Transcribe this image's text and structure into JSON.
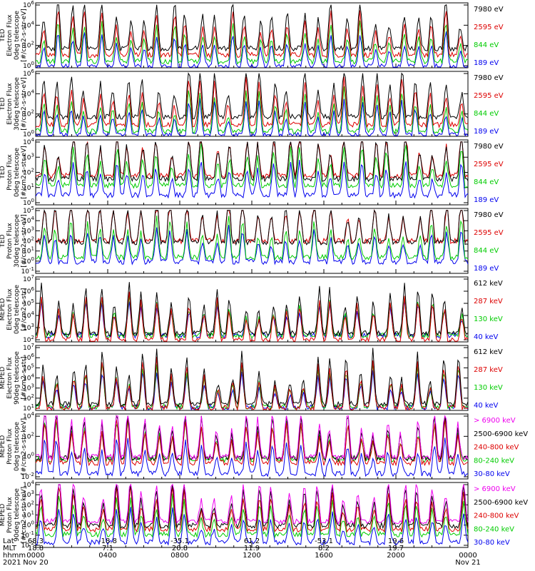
{
  "chart_data": {
    "type": "line",
    "panels": [
      {
        "instrument": "TED",
        "ylabel": [
          "TED",
          "Electron Flux",
          "0deg telescope",
          "[#/cm2-s-str-eV]"
        ],
        "yticks": [
          "10^6",
          "10^4",
          "10^2",
          "10^0"
        ],
        "ylim_exp": [
          0,
          6
        ],
        "series": [
          {
            "name": "7980 eV",
            "color": "#000000"
          },
          {
            "name": "2595 eV",
            "color": "#dd0000"
          },
          {
            "name": "844 eV",
            "color": "#00cc00"
          },
          {
            "name": "189 eV",
            "color": "#0000ee"
          }
        ]
      },
      {
        "instrument": "TED",
        "ylabel": [
          "TED",
          "Electron Flux",
          "30deg telescope",
          "[#/cm2-s-str-eV]"
        ],
        "yticks": [
          "10^6",
          "10^4",
          "10^2",
          "10^0"
        ],
        "ylim_exp": [
          0,
          6
        ],
        "series": [
          {
            "name": "7980 eV",
            "color": "#000000"
          },
          {
            "name": "2595 eV",
            "color": "#dd0000"
          },
          {
            "name": "844 eV",
            "color": "#00cc00"
          },
          {
            "name": "189 eV",
            "color": "#0000ee"
          }
        ]
      },
      {
        "instrument": "TED",
        "ylabel": [
          "TED",
          "Proton Flux",
          "0deg telescope",
          "[#/cm2-s-str-eV]"
        ],
        "yticks": [
          "10^4",
          "10^3",
          "10^2",
          "10^1",
          "10^0"
        ],
        "ylim_exp": [
          0,
          4.5
        ],
        "series": [
          {
            "name": "7980 eV",
            "color": "#000000"
          },
          {
            "name": "2595 eV",
            "color": "#dd0000"
          },
          {
            "name": "844 eV",
            "color": "#00cc00"
          },
          {
            "name": "189 eV",
            "color": "#0000ee"
          }
        ]
      },
      {
        "instrument": "TED",
        "ylabel": [
          "TED",
          "Proton Flux",
          "30deg telescope",
          "[#/cm2-s-str-eV]"
        ],
        "yticks": [
          "10^5",
          "10^4",
          "10^3",
          "10^2",
          "10^1",
          "10^0",
          "10^-1"
        ],
        "ylim_exp": [
          -1,
          5
        ],
        "series": [
          {
            "name": "7980 eV",
            "color": "#000000"
          },
          {
            "name": "2595 eV",
            "color": "#dd0000"
          },
          {
            "name": "844 eV",
            "color": "#00cc00"
          },
          {
            "name": "189 eV",
            "color": "#0000ee"
          }
        ]
      },
      {
        "instrument": "MEPED",
        "ylabel": [
          "MEPED",
          "Electron Flux",
          "0deg telescope",
          "[#/cm2-s-str]"
        ],
        "yticks": [
          "10^7",
          "10^6",
          "10^5",
          "10^4",
          "10^3",
          "10^2"
        ],
        "ylim_exp": [
          1.5,
          7
        ],
        "series": [
          {
            "name": "612 keV",
            "color": "#000000"
          },
          {
            "name": "287 keV",
            "color": "#dd0000"
          },
          {
            "name": "130 keV",
            "color": "#00cc00"
          },
          {
            "name": "40 keV",
            "color": "#0000ee"
          }
        ]
      },
      {
        "instrument": "MEPED",
        "ylabel": [
          "MEPED",
          "Electron Flux",
          "90deg telescope",
          "[#/cm2-s-str]"
        ],
        "yticks": [
          "10^7",
          "10^6",
          "10^5",
          "10^4",
          "10^3",
          "10^2",
          "10^1"
        ],
        "ylim_exp": [
          1,
          7
        ],
        "series": [
          {
            "name": "612 keV",
            "color": "#000000"
          },
          {
            "name": "287 keV",
            "color": "#dd0000"
          },
          {
            "name": "130 keV",
            "color": "#00cc00"
          },
          {
            "name": "40 keV",
            "color": "#0000ee"
          }
        ]
      },
      {
        "instrument": "MEPED",
        "ylabel": [
          "MEPED",
          "Proton Flux",
          "0deg telescope",
          "[#/cm2-s-str-keV]"
        ],
        "yticks": [
          "10^4",
          "10^2",
          "10^0",
          "10^-2"
        ],
        "ylim_exp": [
          -2.5,
          5
        ],
        "series": [
          {
            "name": "> 6900 keV",
            "color": "#ee00ee"
          },
          {
            "name": "2500-6900 keV",
            "color": "#000000"
          },
          {
            "name": "240-800 keV",
            "color": "#dd0000"
          },
          {
            "name": "80-240 keV",
            "color": "#00cc00"
          },
          {
            "name": "30-80 keV",
            "color": "#0000ee"
          }
        ]
      },
      {
        "instrument": "MEPED",
        "ylabel": [
          "MEPED",
          "Proton Flux",
          "90deg telescope",
          "[#/cm2-s-str-keV]"
        ],
        "yticks": [
          "10^4",
          "10^3",
          "10^2",
          "10^1",
          "10^0",
          "10^-1",
          "10^-2"
        ],
        "ylim_exp": [
          -2.5,
          4.5
        ],
        "series": [
          {
            "name": "> 6900 keV",
            "color": "#ee00ee"
          },
          {
            "name": "2500-6900 keV",
            "color": "#000000"
          },
          {
            "name": "240-800 keV",
            "color": "#dd0000"
          },
          {
            "name": "80-240 keV",
            "color": "#00cc00"
          },
          {
            "name": "30-80 keV",
            "color": "#0000ee"
          }
        ]
      }
    ],
    "x_axis": {
      "row_labels": [
        "Lat",
        "MLT",
        "hhmm",
        "2021"
      ],
      "ticks": [
        {
          "lat": "68.3",
          "mlt": "18.8",
          "hhmm": "0000",
          "date": "Nov 20"
        },
        {
          "lat": "-18.8",
          "mlt": "7.1",
          "hhmm": "0400",
          "date": ""
        },
        {
          "lat": "-35.1",
          "mlt": "20.8",
          "hhmm": "0800",
          "date": ""
        },
        {
          "lat": "61.2",
          "mlt": "11.9",
          "hhmm": "1200",
          "date": ""
        },
        {
          "lat": "-53.1",
          "mlt": "8.2",
          "hhmm": "1600",
          "date": ""
        },
        {
          "lat": "19.6",
          "mlt": "19.7",
          "hhmm": "2000",
          "date": ""
        },
        {
          "lat": "",
          "mlt": "",
          "hhmm": "0000",
          "date": "Nov 21"
        }
      ],
      "hours_range": [
        0,
        24
      ]
    }
  }
}
